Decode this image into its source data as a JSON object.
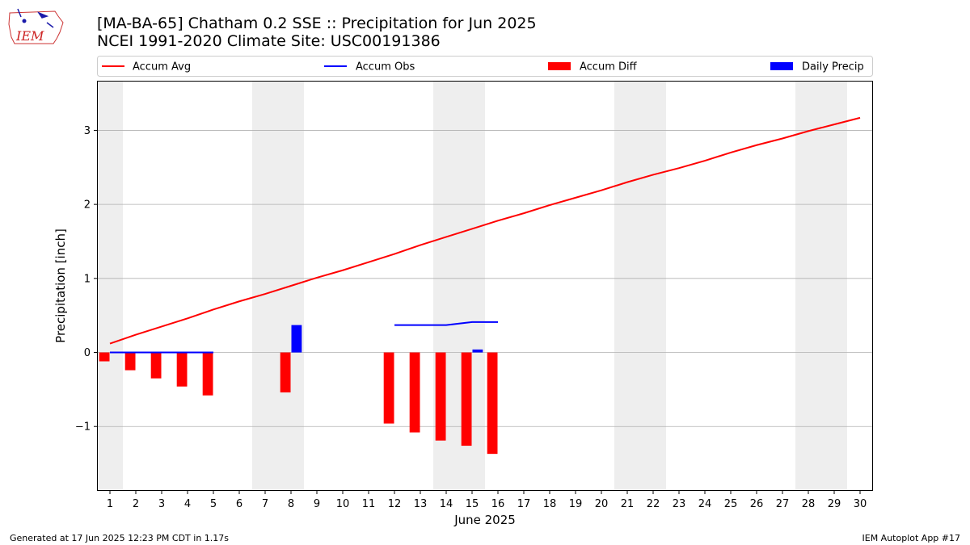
{
  "header": {
    "logo_text": "IEM",
    "title_line1": "[MA-BA-65] Chatham 0.2 SSE :: Precipitation for Jun 2025",
    "title_line2": "NCEI 1991-2020 Climate Site: USC00191386"
  },
  "footer": {
    "generated": "Generated at 17 Jun 2025 12:23 PM CDT in 1.17s",
    "app": "IEM Autoplot App #17"
  },
  "colors": {
    "accum_avg": "#ff0000",
    "accum_obs": "#0000ff",
    "accum_diff": "#ff0000",
    "daily_precip": "#0000ff",
    "weekend_band": "#eeeeee",
    "grid": "#b0b0b0"
  },
  "chart_data": {
    "type": "bar",
    "xlabel": "June 2025",
    "ylabel": "Precipitation [inch]",
    "xlim": [
      0.5,
      30.5
    ],
    "ylim": [
      -1.87,
      3.67
    ],
    "grid": true,
    "legend_placement": "top, above plot",
    "x_ticks": [
      "1",
      "2",
      "3",
      "4",
      "5",
      "6",
      "7",
      "8",
      "9",
      "10",
      "11",
      "12",
      "13",
      "14",
      "15",
      "16",
      "17",
      "18",
      "19",
      "20",
      "21",
      "22",
      "23",
      "24",
      "25",
      "26",
      "27",
      "28",
      "29",
      "30"
    ],
    "y_ticks": [
      {
        "value": -1,
        "label": "−1"
      },
      {
        "value": 0,
        "label": "0"
      },
      {
        "value": 1,
        "label": "1"
      },
      {
        "value": 2,
        "label": "2"
      },
      {
        "value": 3,
        "label": "3"
      }
    ],
    "weekend_days": [
      1,
      7,
      8,
      14,
      15,
      21,
      22,
      28,
      29
    ],
    "series": [
      {
        "name": "Accum Avg",
        "kind": "line",
        "x": [
          1,
          2,
          3,
          4,
          5,
          6,
          7,
          8,
          9,
          10,
          11,
          12,
          13,
          14,
          15,
          16,
          17,
          18,
          19,
          20,
          21,
          22,
          23,
          24,
          25,
          26,
          27,
          28,
          29,
          30
        ],
        "values": [
          0.12,
          0.24,
          0.35,
          0.46,
          0.58,
          0.69,
          0.79,
          0.9,
          1.01,
          1.11,
          1.22,
          1.33,
          1.45,
          1.56,
          1.67,
          1.78,
          1.88,
          1.99,
          2.09,
          2.19,
          2.3,
          2.4,
          2.49,
          2.59,
          2.7,
          2.8,
          2.89,
          2.99,
          3.08,
          3.17
        ]
      },
      {
        "name": "Accum Obs",
        "kind": "line",
        "segments": [
          {
            "x": [
              1,
              2,
              3,
              4,
              5
            ],
            "values": [
              0,
              0,
              0,
              0,
              0
            ]
          },
          {
            "x": [
              12,
              13,
              14,
              15,
              16
            ],
            "values": [
              0.37,
              0.37,
              0.37,
              0.41,
              0.41
            ]
          }
        ]
      },
      {
        "name": "Accum Diff",
        "kind": "bar",
        "x": [
          1,
          2,
          3,
          4,
          5,
          8,
          12,
          13,
          14,
          15,
          16
        ],
        "values": [
          -0.12,
          -0.24,
          -0.35,
          -0.46,
          -0.58,
          -0.54,
          -0.96,
          -1.08,
          -1.19,
          -1.26,
          -1.37
        ]
      },
      {
        "name": "Daily Precip",
        "kind": "bar",
        "x": [
          1,
          2,
          3,
          4,
          5,
          8,
          15
        ],
        "values": [
          0,
          0,
          0,
          0,
          0,
          0.37,
          0.04
        ]
      }
    ]
  }
}
